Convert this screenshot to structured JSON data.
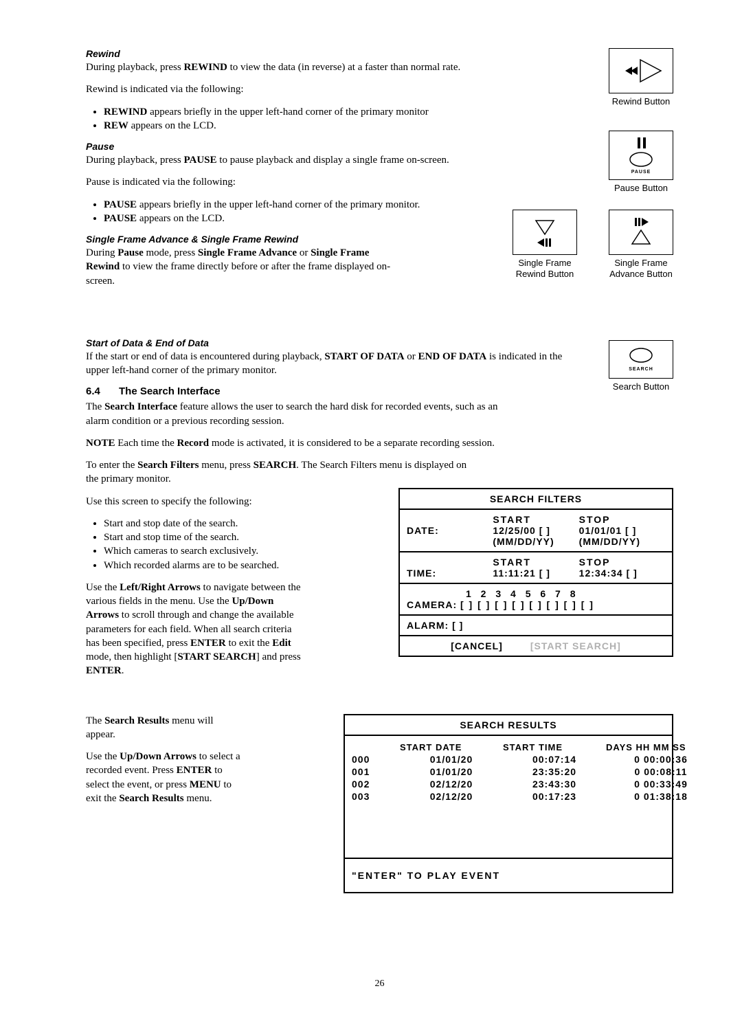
{
  "rewind": {
    "heading": "Rewind",
    "p1_before": "During playback, press ",
    "p1_bold": "REWIND",
    "p1_after": " to view the data (in reverse) at a faster than normal rate.",
    "p2": "Rewind is indicated via the following:",
    "b1_bold": "REWIND",
    "b1_after": " appears briefly in the upper left-hand corner of the primary monitor",
    "b2_bold": "REW",
    "b2_after": " appears on the LCD.",
    "caption": "Rewind Button"
  },
  "pause": {
    "heading": "Pause",
    "p1_before": "During playback, press ",
    "p1_bold": "PAUSE",
    "p1_after": " to pause playback and display a single frame on-screen.",
    "p2": "Pause is indicated via the following:",
    "b1_bold": "PAUSE",
    "b1_after": " appears briefly in the upper left-hand corner of the primary monitor.",
    "b2_bold": "PAUSE",
    "b2_after": " appears on the LCD.",
    "caption": "Pause Button",
    "pause_label": "PAUSE"
  },
  "sfa": {
    "heading": "Single Frame Advance & Single Frame Rewind",
    "p_before": "During ",
    "p_b1": "Pause",
    "p_mid1": " mode, press ",
    "p_b2": "Single Frame Advance",
    "p_mid2": " or ",
    "p_b3": "Single Frame Rewind",
    "p_after": " to view the frame directly before or after the frame displayed on-screen.",
    "caption_rew": "Single Frame\nRewind Button",
    "caption_adv": "Single Frame\nAdvance Button"
  },
  "sod": {
    "heading": "Start of Data & End of Data",
    "p_before": "If the start or end of data is encountered during playback, ",
    "p_b1": "START OF DATA",
    "p_mid": " or ",
    "p_b2": "END OF DATA",
    "p_after": " is indicated in the upper left-hand corner of the primary monitor."
  },
  "search": {
    "num": "6.4",
    "title": "The Search Interface",
    "p1_before": "The ",
    "p1_b": "Search Interface",
    "p1_after": " feature allows the user to search the hard disk for recorded events, such as an alarm condition or a previous recording session.",
    "note_b": "NOTE",
    "note_mid1": " Each time the ",
    "note_b2": "Record",
    "note_after": " mode is activated, it is considered to be a separate recording session.",
    "p2_before": "To enter the ",
    "p2_b": "Search Filters",
    "p2_mid": " menu, press ",
    "p2_b2": "SEARCH",
    "p2_after": ". The Search Filters menu is displayed on the primary monitor.",
    "p3": "Use this screen to specify the following:",
    "ul": [
      "Start and stop date of the search.",
      "Start and stop time of the search.",
      "Which cameras to search exclusively.",
      "Which recorded alarms are to be searched."
    ],
    "p4_a": "Use the ",
    "p4_b1": "Left/Right Arrows",
    "p4_c": " to navigate between the various fields in the menu. Use the ",
    "p4_b2": "Up/Down Arrows",
    "p4_d": " to scroll through and change the available parameters for each field. When all search criteria has been specified, press ",
    "p4_b3": "ENTER",
    "p4_e": " to exit the ",
    "p4_b4": "Edit",
    "p4_f": " mode, then highlight [",
    "p4_b5": "START SEARCH",
    "p4_g": "] and press ",
    "p4_b6": "ENTER",
    "p4_h": ".",
    "caption": "Search Button",
    "search_label": "SEARCH"
  },
  "filters": {
    "title": "SEARCH FILTERS",
    "start": "START",
    "stop": "STOP",
    "date_label": "DATE:",
    "date_start": "12/25/00  [ ]",
    "date_stop": "01/01/01  [ ]",
    "mmddyy": "(MM/DD/YY)",
    "time_label": "TIME:",
    "time_start": "11:11:21  [ ]",
    "time_stop": "12:34:34  [ ]",
    "camera_nums": "1   2   3   4   5   6   7   8",
    "camera_label": "CAMERA:",
    "camera_boxes": "[ ] [ ] [ ] [ ] [ ] [ ] [ ] [ ]",
    "alarm": "ALARM:  [ ]",
    "cancel": "[CANCEL]",
    "start_search": "[START SEARCH]"
  },
  "results_text": {
    "p1_before": "The ",
    "p1_b": "Search Results",
    "p1_after": " menu will appear.",
    "p2_a": "Use the ",
    "p2_b1": "Up/Down Arrows",
    "p2_c": " to select a recorded event. Press ",
    "p2_b2": "ENTER",
    "p2_d": " to select the event, or press ",
    "p2_b3": "MENU",
    "p2_e": " to exit the ",
    "p2_b4": "Search Results",
    "p2_f": " menu."
  },
  "results": {
    "title": "SEARCH RESULTS",
    "h1": "START DATE",
    "h2": "START TIME",
    "h3": "DAYS HH MM SS",
    "rows": [
      {
        "idx": "000",
        "date": "01/01/20",
        "time": "00:07:14",
        "dur": "0 00:00:36"
      },
      {
        "idx": "001",
        "date": "01/01/20",
        "time": "23:35:20",
        "dur": "0 00:08:11"
      },
      {
        "idx": "002",
        "date": "02/12/20",
        "time": "23:43:30",
        "dur": "0 00:33:49"
      },
      {
        "idx": "003",
        "date": "02/12/20",
        "time": "00:17:23",
        "dur": "0 01:38:18"
      }
    ],
    "enter": "\"ENTER\" TO PLAY EVENT"
  },
  "page_number": "26"
}
